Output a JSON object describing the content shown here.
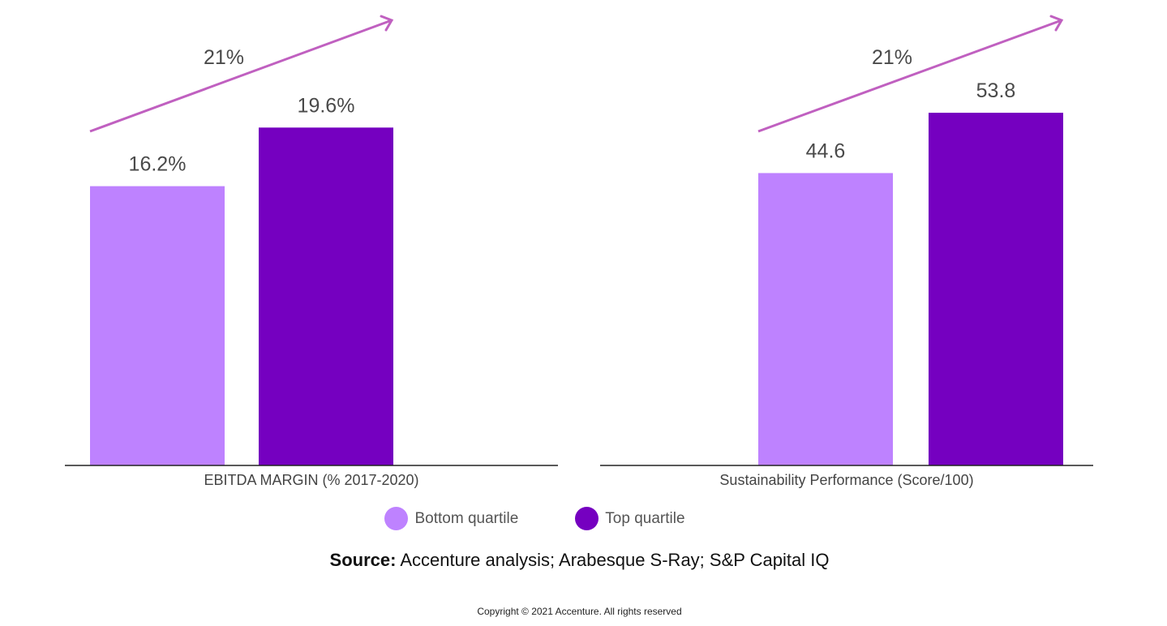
{
  "chart_data": [
    {
      "type": "bar",
      "title": "",
      "xlabel": "EBITDA MARGIN (% 2017-2020)",
      "categories": [
        "Bottom quartile",
        "Top quartile"
      ],
      "values": [
        16.2,
        19.6
      ],
      "value_labels": [
        "16.2%",
        "19.6%"
      ],
      "ylim": [
        0,
        27
      ],
      "annotation": "21%",
      "grid": false
    },
    {
      "type": "bar",
      "title": "",
      "xlabel": "Sustainability Performance (Score/100)",
      "categories": [
        "Bottom quartile",
        "Top quartile"
      ],
      "values": [
        44.6,
        53.8
      ],
      "value_labels": [
        "44.6",
        "53.8"
      ],
      "ylim": [
        0,
        71
      ],
      "annotation": "21%",
      "grid": false
    }
  ],
  "legend": {
    "placement": "bottom",
    "items": [
      {
        "label": "Bottom quartile",
        "color": "#BE82FF"
      },
      {
        "label": "Top quartile",
        "color": "#7500C0"
      }
    ]
  },
  "colors": {
    "arrow": "#C060C0",
    "bottom": "#BE82FF",
    "top": "#7500C0"
  },
  "source": {
    "label": "Source:",
    "text": " Accenture analysis; Arabesque S-Ray; S&P Capital IQ"
  },
  "copyright": "Copyright © 2021 Accenture. All rights reserved"
}
